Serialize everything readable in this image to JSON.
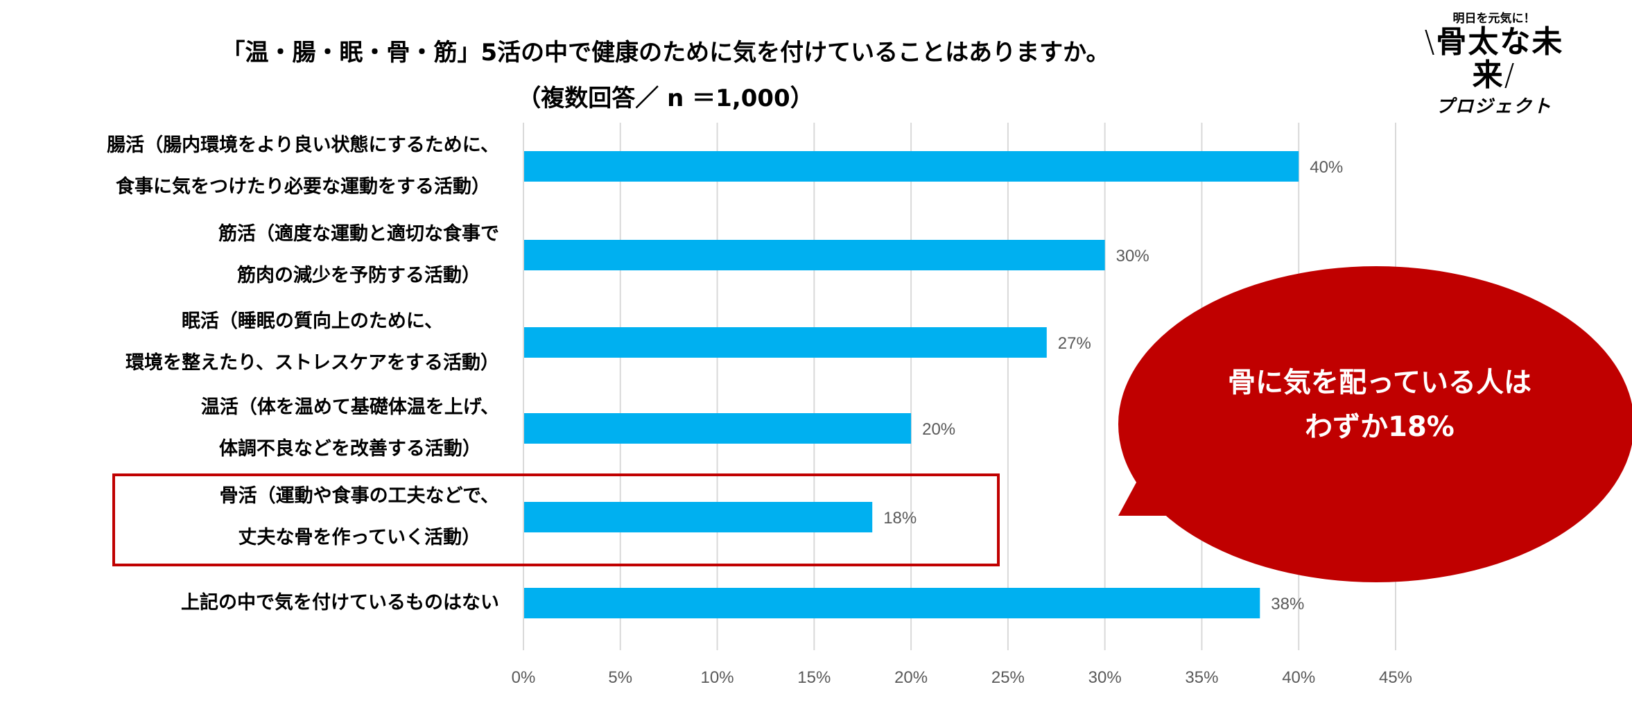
{
  "header": {
    "title": "「温・腸・眠・骨・筋」5活の中で健康のために気を付けていることはありますか。",
    "subtitle": "（複数回答／ n ＝1,000）"
  },
  "logo": {
    "tagline": "明日を元気に！",
    "main": "骨太な未来",
    "sub": "プロジェクト"
  },
  "callout": {
    "line1": "骨に気を配っている人は",
    "line2": "わずか18%",
    "color": "#C00000"
  },
  "chart_data": {
    "type": "bar",
    "orientation": "horizontal",
    "title": "「温・腸・眠・骨・筋」5活の中で健康のために気を付けていることはありますか。",
    "categories": [
      [
        "腸活（腸内環境をより良い状態にするために、",
        "食事に気をつけたり必要な運動をする活動）"
      ],
      [
        "筋活（適度な運動と適切な食事で",
        "筋肉の減少を予防する活動）"
      ],
      [
        "眠活（睡眠の質向上のために、",
        "環境を整えたり、ストレスケアをする活動）"
      ],
      [
        "温活（体を温めて基礎体温を上げ、",
        "体調不良などを改善する活動）"
      ],
      [
        "骨活（運動や食事の工夫などで、",
        "丈夫な骨を作っていく活動）"
      ],
      [
        "上記の中で気を付けているものはない"
      ]
    ],
    "values": [
      40,
      30,
      27,
      20,
      18,
      38
    ],
    "value_labels": [
      "40%",
      "30%",
      "27%",
      "20%",
      "18%",
      "38%"
    ],
    "highlighted_index": 4,
    "xlim": [
      0,
      45
    ],
    "ticks": [
      0,
      5,
      10,
      15,
      20,
      25,
      30,
      35,
      40,
      45
    ],
    "tick_labels": [
      "0%",
      "5%",
      "10%",
      "15%",
      "20%",
      "25%",
      "30%",
      "35%",
      "40%",
      "45%"
    ],
    "grid": true,
    "bar_color": "#00B0F0"
  }
}
